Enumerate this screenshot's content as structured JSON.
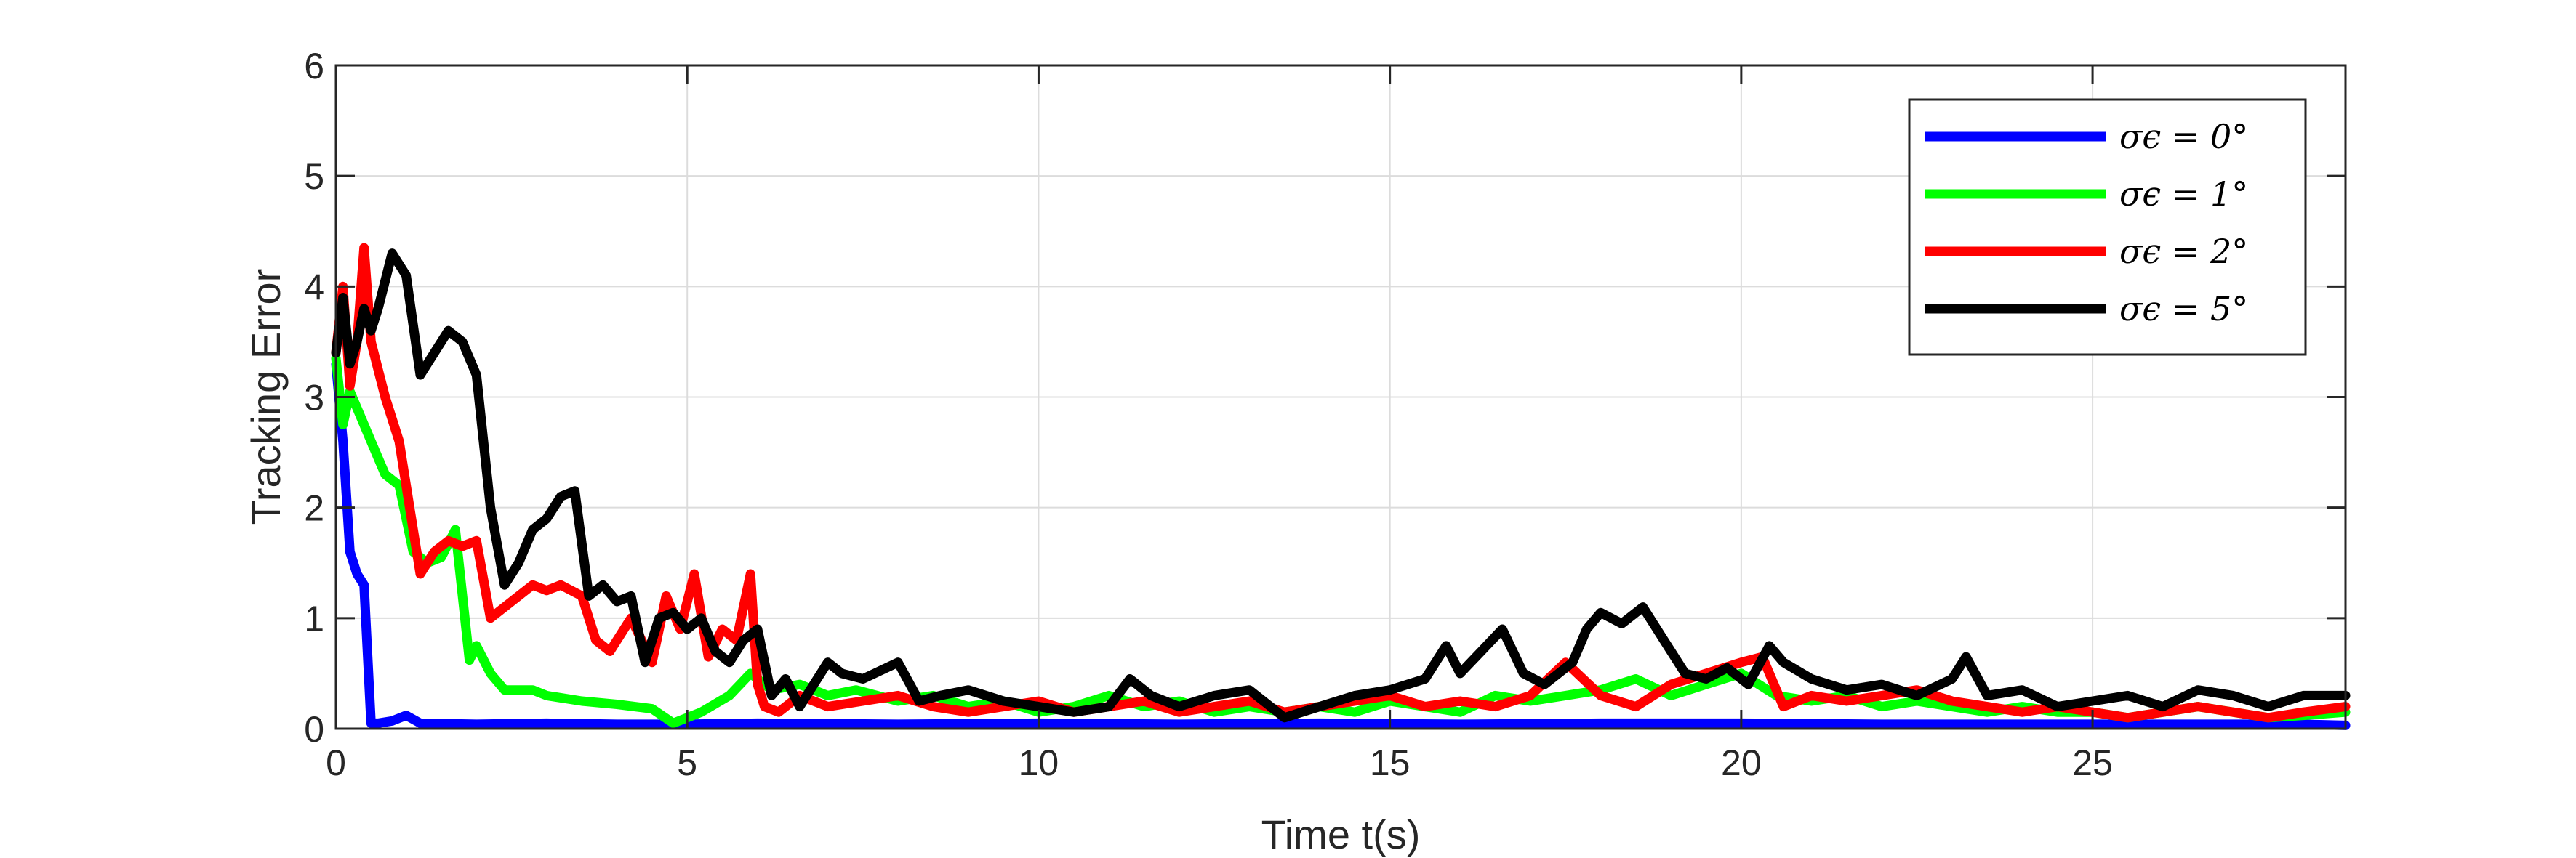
{
  "chart_data": {
    "type": "line",
    "title": "",
    "xlabel": "Time t(s)",
    "ylabel": "Tracking Error",
    "xlim": [
      0,
      28.6
    ],
    "ylim": [
      0,
      6
    ],
    "xticks": [
      0,
      5,
      10,
      15,
      20,
      25
    ],
    "yticks": [
      0,
      1,
      2,
      3,
      4,
      5,
      6
    ],
    "xtick_labels": [
      "0",
      "5",
      "10",
      "15",
      "20",
      "25"
    ],
    "ytick_labels": [
      "0",
      "1",
      "2",
      "3",
      "4",
      "5",
      "6"
    ],
    "grid": true,
    "legend_position": "top-right",
    "series": [
      {
        "name": "σϵ = 0°",
        "color": "#0000ff",
        "x": [
          0,
          0.1,
          0.2,
          0.3,
          0.4,
          0.5,
          0.6,
          0.8,
          1.0,
          1.2,
          2,
          3,
          4,
          5,
          6,
          8,
          10,
          12,
          14,
          16,
          18,
          20,
          22,
          24,
          26,
          28,
          28.6
        ],
        "y": [
          3.3,
          2.6,
          1.6,
          1.4,
          1.3,
          0.05,
          0.05,
          0.07,
          0.12,
          0.05,
          0.04,
          0.05,
          0.04,
          0.04,
          0.05,
          0.04,
          0.05,
          0.04,
          0.05,
          0.04,
          0.05,
          0.05,
          0.04,
          0.04,
          0.04,
          0.04,
          0.03
        ]
      },
      {
        "name": "σϵ = 1°",
        "color": "#00ff00",
        "x": [
          0,
          0.1,
          0.2,
          0.3,
          0.5,
          0.7,
          0.9,
          1.1,
          1.3,
          1.5,
          1.7,
          1.9,
          2.0,
          2.2,
          2.4,
          2.6,
          2.8,
          3.0,
          3.5,
          4.0,
          4.5,
          4.8,
          5.2,
          5.6,
          5.9,
          6.2,
          6.6,
          7.0,
          7.4,
          8.0,
          8.5,
          9.0,
          9.5,
          10.0,
          10.5,
          11.0,
          11.5,
          12.0,
          12.5,
          13.0,
          13.5,
          14.0,
          14.5,
          15.0,
          15.5,
          16.0,
          16.5,
          17.0,
          17.5,
          18.0,
          18.5,
          19.0,
          19.5,
          20.0,
          20.5,
          21.0,
          21.5,
          22.0,
          22.5,
          23.0,
          23.5,
          24.0,
          24.5,
          25.0,
          25.5,
          26.0,
          26.5,
          27.0,
          27.5,
          28.0,
          28.6
        ],
        "y": [
          3.35,
          2.75,
          3.05,
          2.9,
          2.6,
          2.3,
          2.2,
          1.6,
          1.5,
          1.55,
          1.8,
          0.62,
          0.75,
          0.5,
          0.35,
          0.35,
          0.35,
          0.3,
          0.25,
          0.22,
          0.18,
          0.05,
          0.15,
          0.3,
          0.5,
          0.35,
          0.4,
          0.3,
          0.35,
          0.25,
          0.3,
          0.2,
          0.25,
          0.15,
          0.2,
          0.3,
          0.2,
          0.25,
          0.15,
          0.2,
          0.15,
          0.2,
          0.15,
          0.25,
          0.2,
          0.15,
          0.3,
          0.25,
          0.3,
          0.35,
          0.45,
          0.3,
          0.4,
          0.5,
          0.3,
          0.25,
          0.3,
          0.2,
          0.25,
          0.2,
          0.15,
          0.2,
          0.15,
          0.15,
          0.1,
          0.15,
          0.2,
          0.15,
          0.1,
          0.12,
          0.15
        ]
      },
      {
        "name": "σϵ = 2°",
        "color": "#ff0000",
        "x": [
          0,
          0.1,
          0.2,
          0.3,
          0.4,
          0.5,
          0.7,
          0.9,
          1.0,
          1.2,
          1.4,
          1.6,
          1.8,
          2.0,
          2.2,
          2.4,
          2.6,
          2.8,
          3.0,
          3.2,
          3.5,
          3.7,
          3.9,
          4.2,
          4.5,
          4.7,
          4.9,
          5.1,
          5.3,
          5.5,
          5.7,
          5.9,
          6.0,
          6.1,
          6.3,
          6.6,
          7.0,
          7.5,
          8.0,
          8.5,
          9.0,
          9.5,
          10.0,
          10.5,
          11.0,
          11.5,
          12.0,
          12.5,
          13.0,
          13.5,
          14.0,
          14.5,
          15.0,
          15.5,
          16.0,
          16.5,
          17.0,
          17.5,
          18.0,
          18.5,
          19.0,
          19.5,
          20.0,
          20.3,
          20.6,
          21.0,
          21.5,
          22.0,
          22.5,
          23.0,
          23.5,
          24.0,
          24.5,
          25.0,
          25.5,
          26.0,
          26.5,
          27.0,
          27.5,
          28.0,
          28.6
        ],
        "y": [
          3.4,
          4.0,
          3.1,
          3.5,
          4.35,
          3.5,
          3.0,
          2.6,
          2.2,
          1.4,
          1.6,
          1.7,
          1.65,
          1.7,
          1.0,
          1.1,
          1.2,
          1.3,
          1.25,
          1.3,
          1.2,
          0.8,
          0.7,
          1.0,
          0.6,
          1.2,
          0.9,
          1.4,
          0.65,
          0.9,
          0.8,
          1.4,
          0.4,
          0.2,
          0.15,
          0.3,
          0.2,
          0.25,
          0.3,
          0.2,
          0.15,
          0.2,
          0.25,
          0.15,
          0.2,
          0.25,
          0.15,
          0.2,
          0.25,
          0.15,
          0.2,
          0.25,
          0.3,
          0.2,
          0.25,
          0.2,
          0.3,
          0.6,
          0.3,
          0.2,
          0.4,
          0.5,
          0.6,
          0.65,
          0.2,
          0.3,
          0.25,
          0.3,
          0.35,
          0.25,
          0.2,
          0.15,
          0.2,
          0.15,
          0.1,
          0.15,
          0.2,
          0.15,
          0.1,
          0.15,
          0.2
        ]
      },
      {
        "name": "σϵ = 5°",
        "color": "#000000",
        "x": [
          0,
          0.1,
          0.2,
          0.3,
          0.4,
          0.5,
          0.6,
          0.8,
          1.0,
          1.2,
          1.4,
          1.6,
          1.8,
          2.0,
          2.2,
          2.4,
          2.6,
          2.8,
          3.0,
          3.2,
          3.4,
          3.6,
          3.8,
          4.0,
          4.2,
          4.4,
          4.6,
          4.8,
          5.0,
          5.2,
          5.4,
          5.6,
          5.8,
          6.0,
          6.2,
          6.4,
          6.6,
          7.0,
          7.2,
          7.5,
          8.0,
          8.3,
          8.6,
          9.0,
          9.5,
          10.0,
          10.5,
          11.0,
          11.3,
          11.6,
          12.0,
          12.5,
          13.0,
          13.5,
          14.0,
          14.5,
          15.0,
          15.5,
          15.8,
          16.0,
          16.3,
          16.6,
          16.9,
          17.2,
          17.6,
          17.8,
          18.0,
          18.3,
          18.6,
          18.9,
          19.2,
          19.5,
          19.8,
          20.1,
          20.4,
          20.6,
          21.0,
          21.5,
          22.0,
          22.5,
          23.0,
          23.2,
          23.5,
          24.0,
          24.5,
          25.0,
          25.5,
          26.0,
          26.5,
          27.0,
          27.5,
          28.0,
          28.6
        ],
        "y": [
          3.4,
          3.9,
          3.3,
          3.5,
          3.8,
          3.6,
          3.8,
          4.3,
          4.1,
          3.2,
          3.4,
          3.6,
          3.5,
          3.2,
          2.0,
          1.3,
          1.5,
          1.8,
          1.9,
          2.1,
          2.15,
          1.2,
          1.3,
          1.15,
          1.2,
          0.6,
          1.0,
          1.05,
          0.9,
          1.0,
          0.7,
          0.6,
          0.8,
          0.9,
          0.3,
          0.45,
          0.2,
          0.6,
          0.5,
          0.45,
          0.6,
          0.25,
          0.3,
          0.35,
          0.25,
          0.2,
          0.15,
          0.2,
          0.45,
          0.3,
          0.2,
          0.3,
          0.35,
          0.1,
          0.2,
          0.3,
          0.35,
          0.45,
          0.75,
          0.5,
          0.7,
          0.9,
          0.5,
          0.4,
          0.6,
          0.9,
          1.05,
          0.95,
          1.1,
          0.8,
          0.5,
          0.45,
          0.55,
          0.4,
          0.75,
          0.6,
          0.45,
          0.35,
          0.4,
          0.3,
          0.45,
          0.65,
          0.3,
          0.35,
          0.2,
          0.25,
          0.3,
          0.2,
          0.35,
          0.3,
          0.2,
          0.3,
          0.3
        ]
      }
    ]
  }
}
